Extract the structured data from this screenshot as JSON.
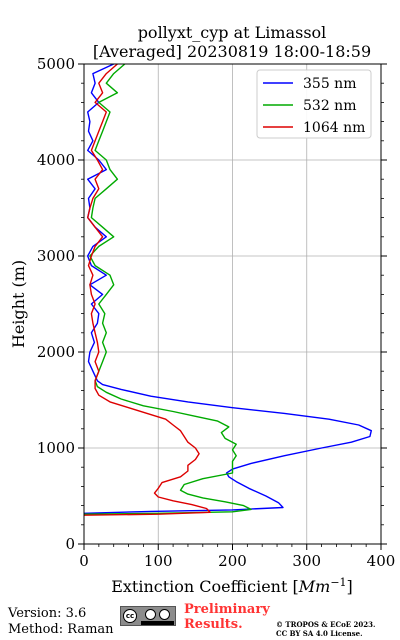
{
  "chart_data": {
    "type": "line",
    "title": "pollyxt_cyp at Limassol",
    "subtitle": "[Averaged] 20230819 18:00-18:59",
    "xlabel": "Extinction Coefficient [",
    "xlabel_unit_base": "Mm",
    "xlabel_unit_exp": "−1",
    "xlabel_close": "]",
    "ylabel": "Height (m)",
    "xlim": [
      0,
      400
    ],
    "ylim": [
      0,
      5000
    ],
    "xticks": [
      0,
      100,
      200,
      300,
      400
    ],
    "yticks": [
      0,
      1000,
      2000,
      3000,
      4000,
      5000
    ],
    "grid": true,
    "legend_position": "top-right",
    "series": [
      {
        "name": "355 nm",
        "color": "#0000ff",
        "points": [
          [
            0,
            320
          ],
          [
            90,
            340
          ],
          [
            200,
            355
          ],
          [
            268,
            380
          ],
          [
            262,
            430
          ],
          [
            245,
            500
          ],
          [
            222,
            580
          ],
          [
            205,
            650
          ],
          [
            195,
            700
          ],
          [
            192,
            740
          ],
          [
            200,
            780
          ],
          [
            225,
            840
          ],
          [
            270,
            920
          ],
          [
            320,
            1000
          ],
          [
            360,
            1060
          ],
          [
            385,
            1120
          ],
          [
            387,
            1180
          ],
          [
            370,
            1240
          ],
          [
            330,
            1300
          ],
          [
            270,
            1360
          ],
          [
            200,
            1420
          ],
          [
            140,
            1480
          ],
          [
            90,
            1540
          ],
          [
            50,
            1610
          ],
          [
            25,
            1660
          ],
          [
            18,
            1700
          ],
          [
            12,
            1800
          ],
          [
            6,
            1900
          ],
          [
            8,
            2000
          ],
          [
            14,
            2100
          ],
          [
            10,
            2200
          ],
          [
            18,
            2300
          ],
          [
            20,
            2400
          ],
          [
            10,
            2500
          ],
          [
            25,
            2600
          ],
          [
            8,
            2700
          ],
          [
            30,
            2800
          ],
          [
            10,
            2900
          ],
          [
            5,
            3000
          ],
          [
            12,
            3100
          ],
          [
            30,
            3200
          ],
          [
            15,
            3300
          ],
          [
            5,
            3400
          ],
          [
            8,
            3500
          ],
          [
            6,
            3600
          ],
          [
            15,
            3700
          ],
          [
            5,
            3800
          ],
          [
            30,
            3900
          ],
          [
            20,
            4000
          ],
          [
            5,
            4100
          ],
          [
            12,
            4200
          ],
          [
            6,
            4300
          ],
          [
            8,
            4400
          ],
          [
            5,
            4500
          ],
          [
            20,
            4600
          ],
          [
            10,
            4700
          ],
          [
            15,
            4800
          ],
          [
            12,
            4900
          ],
          [
            40,
            5000
          ]
        ]
      },
      {
        "name": "532 nm",
        "color": "#00aa00",
        "points": [
          [
            0,
            310
          ],
          [
            100,
            320
          ],
          [
            200,
            335
          ],
          [
            225,
            360
          ],
          [
            215,
            400
          ],
          [
            190,
            440
          ],
          [
            160,
            480
          ],
          [
            140,
            520
          ],
          [
            130,
            560
          ],
          [
            135,
            620
          ],
          [
            160,
            680
          ],
          [
            200,
            740
          ],
          [
            200,
            800
          ],
          [
            200,
            860
          ],
          [
            205,
            920
          ],
          [
            200,
            980
          ],
          [
            205,
            1040
          ],
          [
            190,
            1100
          ],
          [
            185,
            1160
          ],
          [
            195,
            1220
          ],
          [
            180,
            1280
          ],
          [
            150,
            1330
          ],
          [
            120,
            1380
          ],
          [
            80,
            1440
          ],
          [
            50,
            1510
          ],
          [
            30,
            1580
          ],
          [
            18,
            1640
          ],
          [
            15,
            1700
          ],
          [
            20,
            1800
          ],
          [
            25,
            1900
          ],
          [
            30,
            2000
          ],
          [
            25,
            2100
          ],
          [
            30,
            2200
          ],
          [
            25,
            2300
          ],
          [
            28,
            2400
          ],
          [
            20,
            2500
          ],
          [
            30,
            2600
          ],
          [
            40,
            2700
          ],
          [
            35,
            2800
          ],
          [
            15,
            2900
          ],
          [
            8,
            3000
          ],
          [
            20,
            3100
          ],
          [
            40,
            3200
          ],
          [
            25,
            3300
          ],
          [
            10,
            3400
          ],
          [
            12,
            3500
          ],
          [
            15,
            3600
          ],
          [
            30,
            3700
          ],
          [
            45,
            3800
          ],
          [
            35,
            3900
          ],
          [
            30,
            4000
          ],
          [
            15,
            4100
          ],
          [
            20,
            4200
          ],
          [
            25,
            4300
          ],
          [
            30,
            4400
          ],
          [
            35,
            4500
          ],
          [
            20,
            4600
          ],
          [
            45,
            4700
          ],
          [
            30,
            4800
          ],
          [
            40,
            4900
          ],
          [
            55,
            5000
          ]
        ]
      },
      {
        "name": "1064 nm",
        "color": "#dd0000",
        "points": [
          [
            0,
            300
          ],
          [
            100,
            310
          ],
          [
            170,
            330
          ],
          [
            165,
            370
          ],
          [
            145,
            410
          ],
          [
            120,
            450
          ],
          [
            100,
            490
          ],
          [
            95,
            530
          ],
          [
            100,
            580
          ],
          [
            105,
            640
          ],
          [
            130,
            700
          ],
          [
            140,
            760
          ],
          [
            140,
            820
          ],
          [
            150,
            880
          ],
          [
            155,
            940
          ],
          [
            150,
            1000
          ],
          [
            140,
            1060
          ],
          [
            135,
            1120
          ],
          [
            130,
            1180
          ],
          [
            120,
            1240
          ],
          [
            110,
            1300
          ],
          [
            85,
            1360
          ],
          [
            60,
            1420
          ],
          [
            35,
            1480
          ],
          [
            20,
            1550
          ],
          [
            15,
            1620
          ],
          [
            15,
            1700
          ],
          [
            20,
            1800
          ],
          [
            15,
            1900
          ],
          [
            20,
            2000
          ],
          [
            18,
            2100
          ],
          [
            15,
            2200
          ],
          [
            12,
            2300
          ],
          [
            10,
            2400
          ],
          [
            15,
            2500
          ],
          [
            10,
            2600
          ],
          [
            8,
            2700
          ],
          [
            12,
            2800
          ],
          [
            6,
            2900
          ],
          [
            10,
            3000
          ],
          [
            15,
            3100
          ],
          [
            25,
            3200
          ],
          [
            15,
            3300
          ],
          [
            5,
            3400
          ],
          [
            8,
            3500
          ],
          [
            12,
            3600
          ],
          [
            20,
            3700
          ],
          [
            15,
            3800
          ],
          [
            25,
            3900
          ],
          [
            18,
            4000
          ],
          [
            10,
            4100
          ],
          [
            15,
            4200
          ],
          [
            20,
            4300
          ],
          [
            25,
            4400
          ],
          [
            30,
            4500
          ],
          [
            15,
            4600
          ],
          [
            25,
            4700
          ],
          [
            20,
            4800
          ],
          [
            30,
            4900
          ],
          [
            45,
            5000
          ]
        ]
      }
    ]
  },
  "footer": {
    "version": "Version: 3.6",
    "method": "Method: Raman",
    "preliminary_line1": "Preliminary",
    "preliminary_line2": "Results.",
    "copyright_line1": "© TROPOS & ECoE 2023.",
    "copyright_line2": "CC BY SA 4.0 License.",
    "license_badge_text": "cc"
  }
}
